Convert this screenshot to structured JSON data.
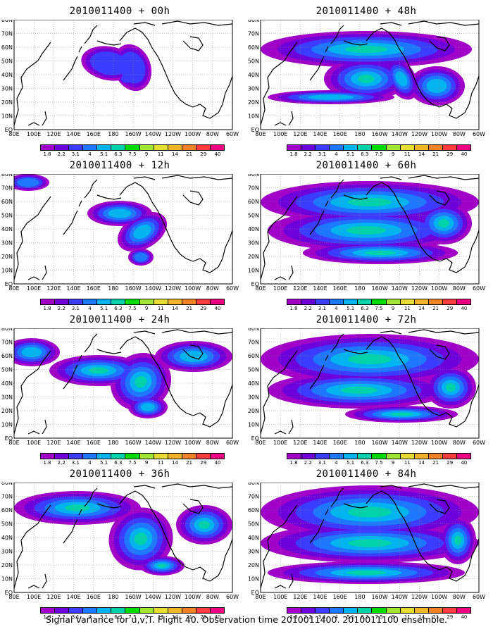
{
  "panels": [
    {
      "title": "2010011400 + 00h"
    },
    {
      "title": "2010011400 + 48h"
    },
    {
      "title": "2010011400 + 12h"
    },
    {
      "title": "2010011400 + 60h"
    },
    {
      "title": "2010011400 + 24h"
    },
    {
      "title": "2010011400 + 72h"
    },
    {
      "title": "2010011400 + 36h"
    },
    {
      "title": "2010011400 + 84h"
    }
  ],
  "map": {
    "lat_labels": [
      "EQ",
      "10N",
      "20N",
      "30N",
      "40N",
      "50N",
      "60N",
      "70N",
      "80N"
    ],
    "lon_labels": [
      "80E",
      "100E",
      "120E",
      "140E",
      "160E",
      "180",
      "160W",
      "140W",
      "120W",
      "100W",
      "80W",
      "60W"
    ]
  },
  "colorbar": {
    "labels": [
      "1.8",
      "2.2",
      "3.1",
      "4",
      "5.1",
      "6.3",
      "7.5",
      "9",
      "11",
      "14",
      "21",
      "29",
      "40"
    ],
    "colors": [
      "#a000c8",
      "#6e00dc",
      "#3c3cff",
      "#1e78ff",
      "#00b4f0",
      "#00d2aa",
      "#00dc00",
      "#a0e632",
      "#e6dc32",
      "#f0b428",
      "#f08228",
      "#fa3c3c",
      "#f00082"
    ]
  },
  "footer": "Signal Variance for u,v,T. Flight 40. Observation time 2010011400. 2010011100 ensemble."
}
